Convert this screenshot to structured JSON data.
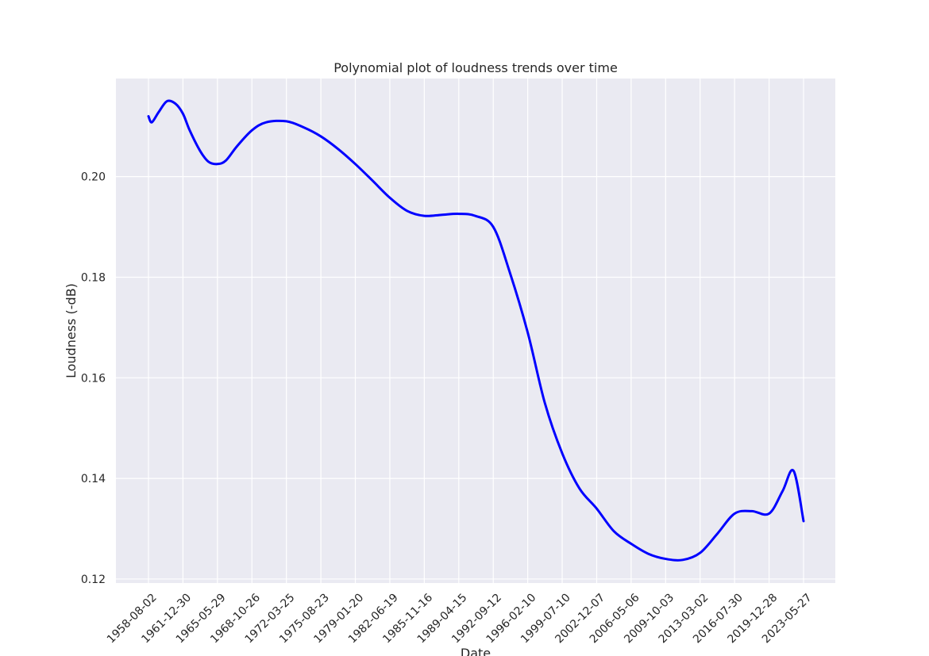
{
  "chart_data": {
    "type": "line",
    "title": "Polynomial plot of loudness trends over time",
    "xlabel": "Date",
    "ylabel": "Loudness (-dB)",
    "x_ticks": [
      "1958-08-02",
      "1961-12-30",
      "1965-05-29",
      "1968-10-26",
      "1972-03-25",
      "1975-08-23",
      "1979-01-20",
      "1982-06-19",
      "1985-11-16",
      "1989-04-15",
      "1992-09-12",
      "1996-02-10",
      "1999-07-10",
      "2002-12-07",
      "2006-05-06",
      "2009-10-03",
      "2013-03-02",
      "2016-07-30",
      "2019-12-28",
      "2023-05-27"
    ],
    "y_ticks": [
      "0.12",
      "0.14",
      "0.16",
      "0.18",
      "0.20"
    ],
    "ylim": [
      0.1192,
      0.2195
    ],
    "grid": true,
    "line_color": "#0000ff",
    "background_color": "#eaeaf2",
    "series": [
      {
        "x": [
          "1958-08-02",
          "1958-11-30",
          "1959-08-02",
          "1960-06-02",
          "1961-04-02",
          "1961-12-30",
          "1962-08-30",
          "1963-09-01",
          "1964-07-01",
          "1965-05-29",
          "1966-03-30",
          "1967-05-01",
          "1968-10-26",
          "1970-03-25",
          "1972-03-25",
          "1973-12-05",
          "1975-08-23",
          "1977-05-05",
          "1979-01-20",
          "1980-10-01",
          "1982-06-19",
          "1984-03-01",
          "1985-11-16",
          "1987-08-01",
          "1989-04-15",
          "1990-12-01",
          "1992-09-12",
          "1994-05-01",
          "1996-02-10",
          "1997-10-20",
          "1999-07-10",
          "2001-03-25",
          "2002-12-07",
          "2004-08-20",
          "2006-05-06",
          "2008-01-20",
          "2009-10-03",
          "2011-06-17",
          "2013-03-02",
          "2014-11-15",
          "2016-07-30",
          "2018-04-13",
          "2019-12-28",
          "2021-05-01",
          "2022-06-01",
          "2023-05-27"
        ],
        "y": [
          0.212,
          0.2108,
          0.2128,
          0.215,
          0.2145,
          0.2125,
          0.2092,
          0.2052,
          0.203,
          0.2025,
          0.2032,
          0.206,
          0.2092,
          0.2108,
          0.211,
          0.2098,
          0.208,
          0.2055,
          0.2025,
          0.1992,
          0.1958,
          0.1932,
          0.1922,
          0.1924,
          0.1926,
          0.1922,
          0.19,
          0.181,
          0.169,
          0.155,
          0.145,
          0.138,
          0.134,
          0.1295,
          0.127,
          0.125,
          0.124,
          0.1238,
          0.1252,
          0.129,
          0.133,
          0.1335,
          0.133,
          0.1375,
          0.1415,
          0.1315
        ]
      }
    ]
  }
}
